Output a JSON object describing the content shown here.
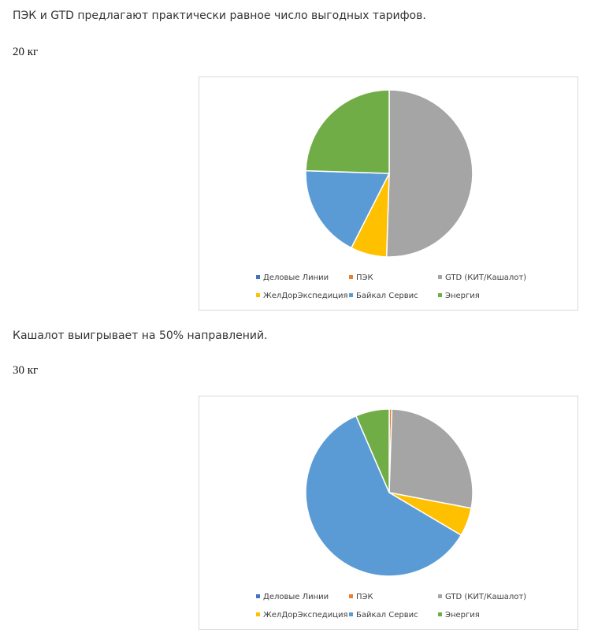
{
  "texts": {
    "p1": "ПЭК и GTD предлагают практически равное число выгодных тарифов.",
    "w20": "20 кг",
    "p2": "Кашалот выигрывает на 50% направлений.",
    "w30": "30 кг"
  },
  "legend_labels": [
    "Деловые Линии",
    "ПЭК",
    "GTD (КИТ/Кашалот)",
    "ЖелДорЭкспедиция",
    "Байкал Сервис",
    "Энергия"
  ],
  "colors": [
    "#4472C4",
    "#ED7D31",
    "#A5A5A5",
    "#FFC000",
    "#5B9BD5",
    "#70AD47"
  ],
  "chart_data": [
    {
      "type": "pie",
      "title": "",
      "categories": [
        "Деловые Линии",
        "ПЭК",
        "GTD (КИТ/Кашалот)",
        "ЖелДорЭкспедиция",
        "Байкал Сервис",
        "Энергия"
      ],
      "values": [
        0,
        0,
        50.5,
        7,
        18,
        24.5
      ],
      "legend": "bottom"
    },
    {
      "type": "pie",
      "title": "",
      "categories": [
        "Деловые Линии",
        "ПЭК",
        "GTD (КИТ/Кашалот)",
        "ЖелДорЭкспедиция",
        "Байкал Сервис",
        "Энергия"
      ],
      "values": [
        0,
        0.5,
        27.5,
        5.5,
        60,
        6.5
      ],
      "legend": "bottom"
    }
  ]
}
